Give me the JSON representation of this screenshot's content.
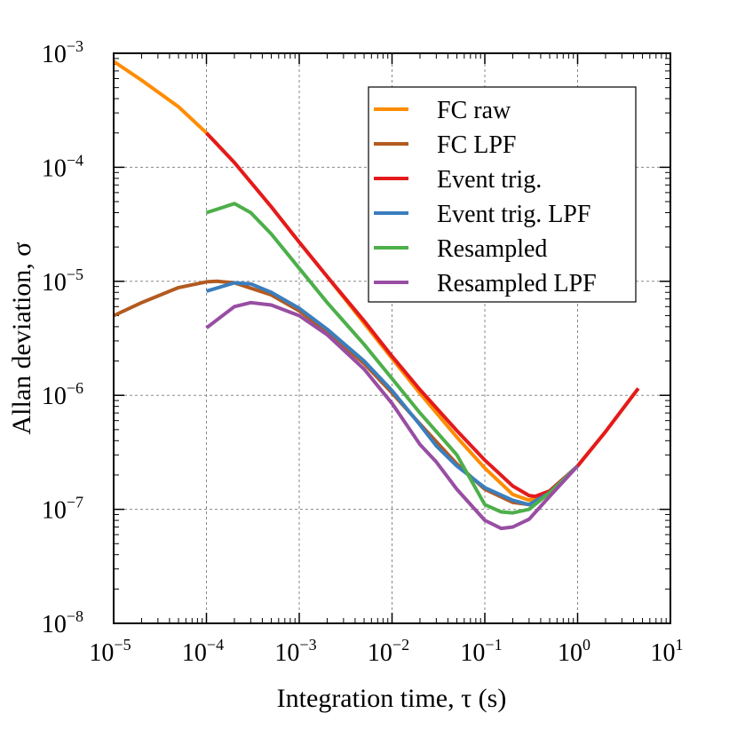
{
  "chart_data": {
    "type": "line",
    "title": "",
    "xlabel": "Integration time, τ (s)",
    "ylabel": "Allan deviation, σ",
    "x_scale": "log",
    "y_scale": "log",
    "xlim": [
      1e-05,
      10
    ],
    "ylim": [
      1e-08,
      0.001
    ],
    "grid": true,
    "legend_position": "top-right",
    "x_ticks": [
      {
        "base": "10",
        "exp": "−5",
        "value": 1e-05
      },
      {
        "base": "10",
        "exp": "−4",
        "value": 0.0001
      },
      {
        "base": "10",
        "exp": "−3",
        "value": 0.001
      },
      {
        "base": "10",
        "exp": "−2",
        "value": 0.01
      },
      {
        "base": "10",
        "exp": "−1",
        "value": 0.1
      },
      {
        "base": "10",
        "exp": "0",
        "value": 1
      },
      {
        "base": "10",
        "exp": "1",
        "value": 10
      }
    ],
    "y_ticks": [
      {
        "base": "10",
        "exp": "−8",
        "value": 1e-08
      },
      {
        "base": "10",
        "exp": "−7",
        "value": 1e-07
      },
      {
        "base": "10",
        "exp": "−6",
        "value": 1e-06
      },
      {
        "base": "10",
        "exp": "−5",
        "value": 1e-05
      },
      {
        "base": "10",
        "exp": "−4",
        "value": 0.0001
      },
      {
        "base": "10",
        "exp": "−3",
        "value": 0.001
      }
    ],
    "series": [
      {
        "name": "FC raw",
        "color": "#ff8c00",
        "x": [
          1e-05,
          2e-05,
          5e-05,
          0.0001,
          0.0002,
          0.0005,
          0.001,
          0.002,
          0.005,
          0.01,
          0.02,
          0.05,
          0.1,
          0.2,
          0.3,
          0.5,
          1,
          2,
          4.5
        ],
        "y": [
          0.00085,
          0.00058,
          0.00034,
          0.0002,
          0.00011,
          4.5e-05,
          2.2e-05,
          1.1e-05,
          4.3e-06,
          2.1e-06,
          1.04e-06,
          4.3e-07,
          2.3e-07,
          1.35e-07,
          1.2e-07,
          1.4e-07,
          2.4e-07,
          4.8e-07,
          1.15e-06
        ]
      },
      {
        "name": "FC LPF",
        "color": "#b35a20",
        "x": [
          1e-05,
          2e-05,
          5e-05,
          0.0001,
          0.00013,
          0.0002,
          0.0005,
          0.001,
          0.002,
          0.005,
          0.01,
          0.02,
          0.05,
          0.1,
          0.2,
          0.3,
          0.5,
          1
        ],
        "y": [
          5e-06,
          6.5e-06,
          8.8e-06,
          9.9e-06,
          1e-05,
          9.7e-06,
          7.6e-06,
          5.5e-06,
          3.6e-06,
          1.9e-06,
          1.05e-06,
          5.6e-07,
          2.5e-07,
          1.5e-07,
          1.15e-07,
          1.1e-07,
          1.4e-07,
          2.4e-07
        ]
      },
      {
        "name": "Event trig.",
        "color": "#e41a1c",
        "x": [
          0.0001,
          0.0002,
          0.0005,
          0.001,
          0.002,
          0.005,
          0.01,
          0.02,
          0.05,
          0.1,
          0.2,
          0.3,
          0.35,
          0.5,
          1,
          2,
          4.5
        ],
        "y": [
          0.0002,
          0.00011,
          4.5e-05,
          2.2e-05,
          1.1e-05,
          4.5e-06,
          2.2e-06,
          1.12e-06,
          4.9e-07,
          2.7e-07,
          1.6e-07,
          1.32e-07,
          1.3e-07,
          1.45e-07,
          2.4e-07,
          4.8e-07,
          1.15e-06
        ]
      },
      {
        "name": "Event trig. LPF",
        "color": "#3a7ebf",
        "x": [
          0.0001,
          0.0002,
          0.0003,
          0.0005,
          0.001,
          0.002,
          0.005,
          0.01,
          0.02,
          0.03,
          0.05,
          0.1,
          0.2,
          0.3,
          0.5,
          1
        ],
        "y": [
          8.2e-06,
          9.7e-06,
          9.5e-06,
          8e-06,
          5.8e-06,
          3.8e-06,
          2e-06,
          1.1e-06,
          5.5e-07,
          3.6e-07,
          2.4e-07,
          1.55e-07,
          1.2e-07,
          1.1e-07,
          1.4e-07,
          2.4e-07
        ]
      },
      {
        "name": "Resampled",
        "color": "#4daf4a",
        "x": [
          0.0001,
          0.0002,
          0.0003,
          0.0005,
          0.001,
          0.002,
          0.005,
          0.01,
          0.02,
          0.05,
          0.1,
          0.15,
          0.2,
          0.3,
          0.5,
          1
        ],
        "y": [
          4e-05,
          4.8e-05,
          4e-05,
          2.6e-05,
          1.3e-05,
          6.5e-06,
          2.8e-06,
          1.4e-06,
          7e-07,
          3e-07,
          1.1e-07,
          9.5e-08,
          9.3e-08,
          1e-07,
          1.4e-07,
          2.4e-07
        ]
      },
      {
        "name": "Resampled LPF",
        "color": "#984ea3",
        "x": [
          0.0001,
          0.0002,
          0.0003,
          0.0005,
          0.001,
          0.002,
          0.005,
          0.01,
          0.02,
          0.03,
          0.05,
          0.1,
          0.15,
          0.2,
          0.3,
          0.5,
          1
        ],
        "y": [
          3.9e-06,
          6e-06,
          6.5e-06,
          6.2e-06,
          5e-06,
          3.4e-06,
          1.7e-06,
          8.5e-07,
          3.7e-07,
          2.6e-07,
          1.5e-07,
          8e-08,
          6.8e-08,
          7e-08,
          8.2e-08,
          1.3e-07,
          2.4e-07
        ]
      }
    ]
  }
}
